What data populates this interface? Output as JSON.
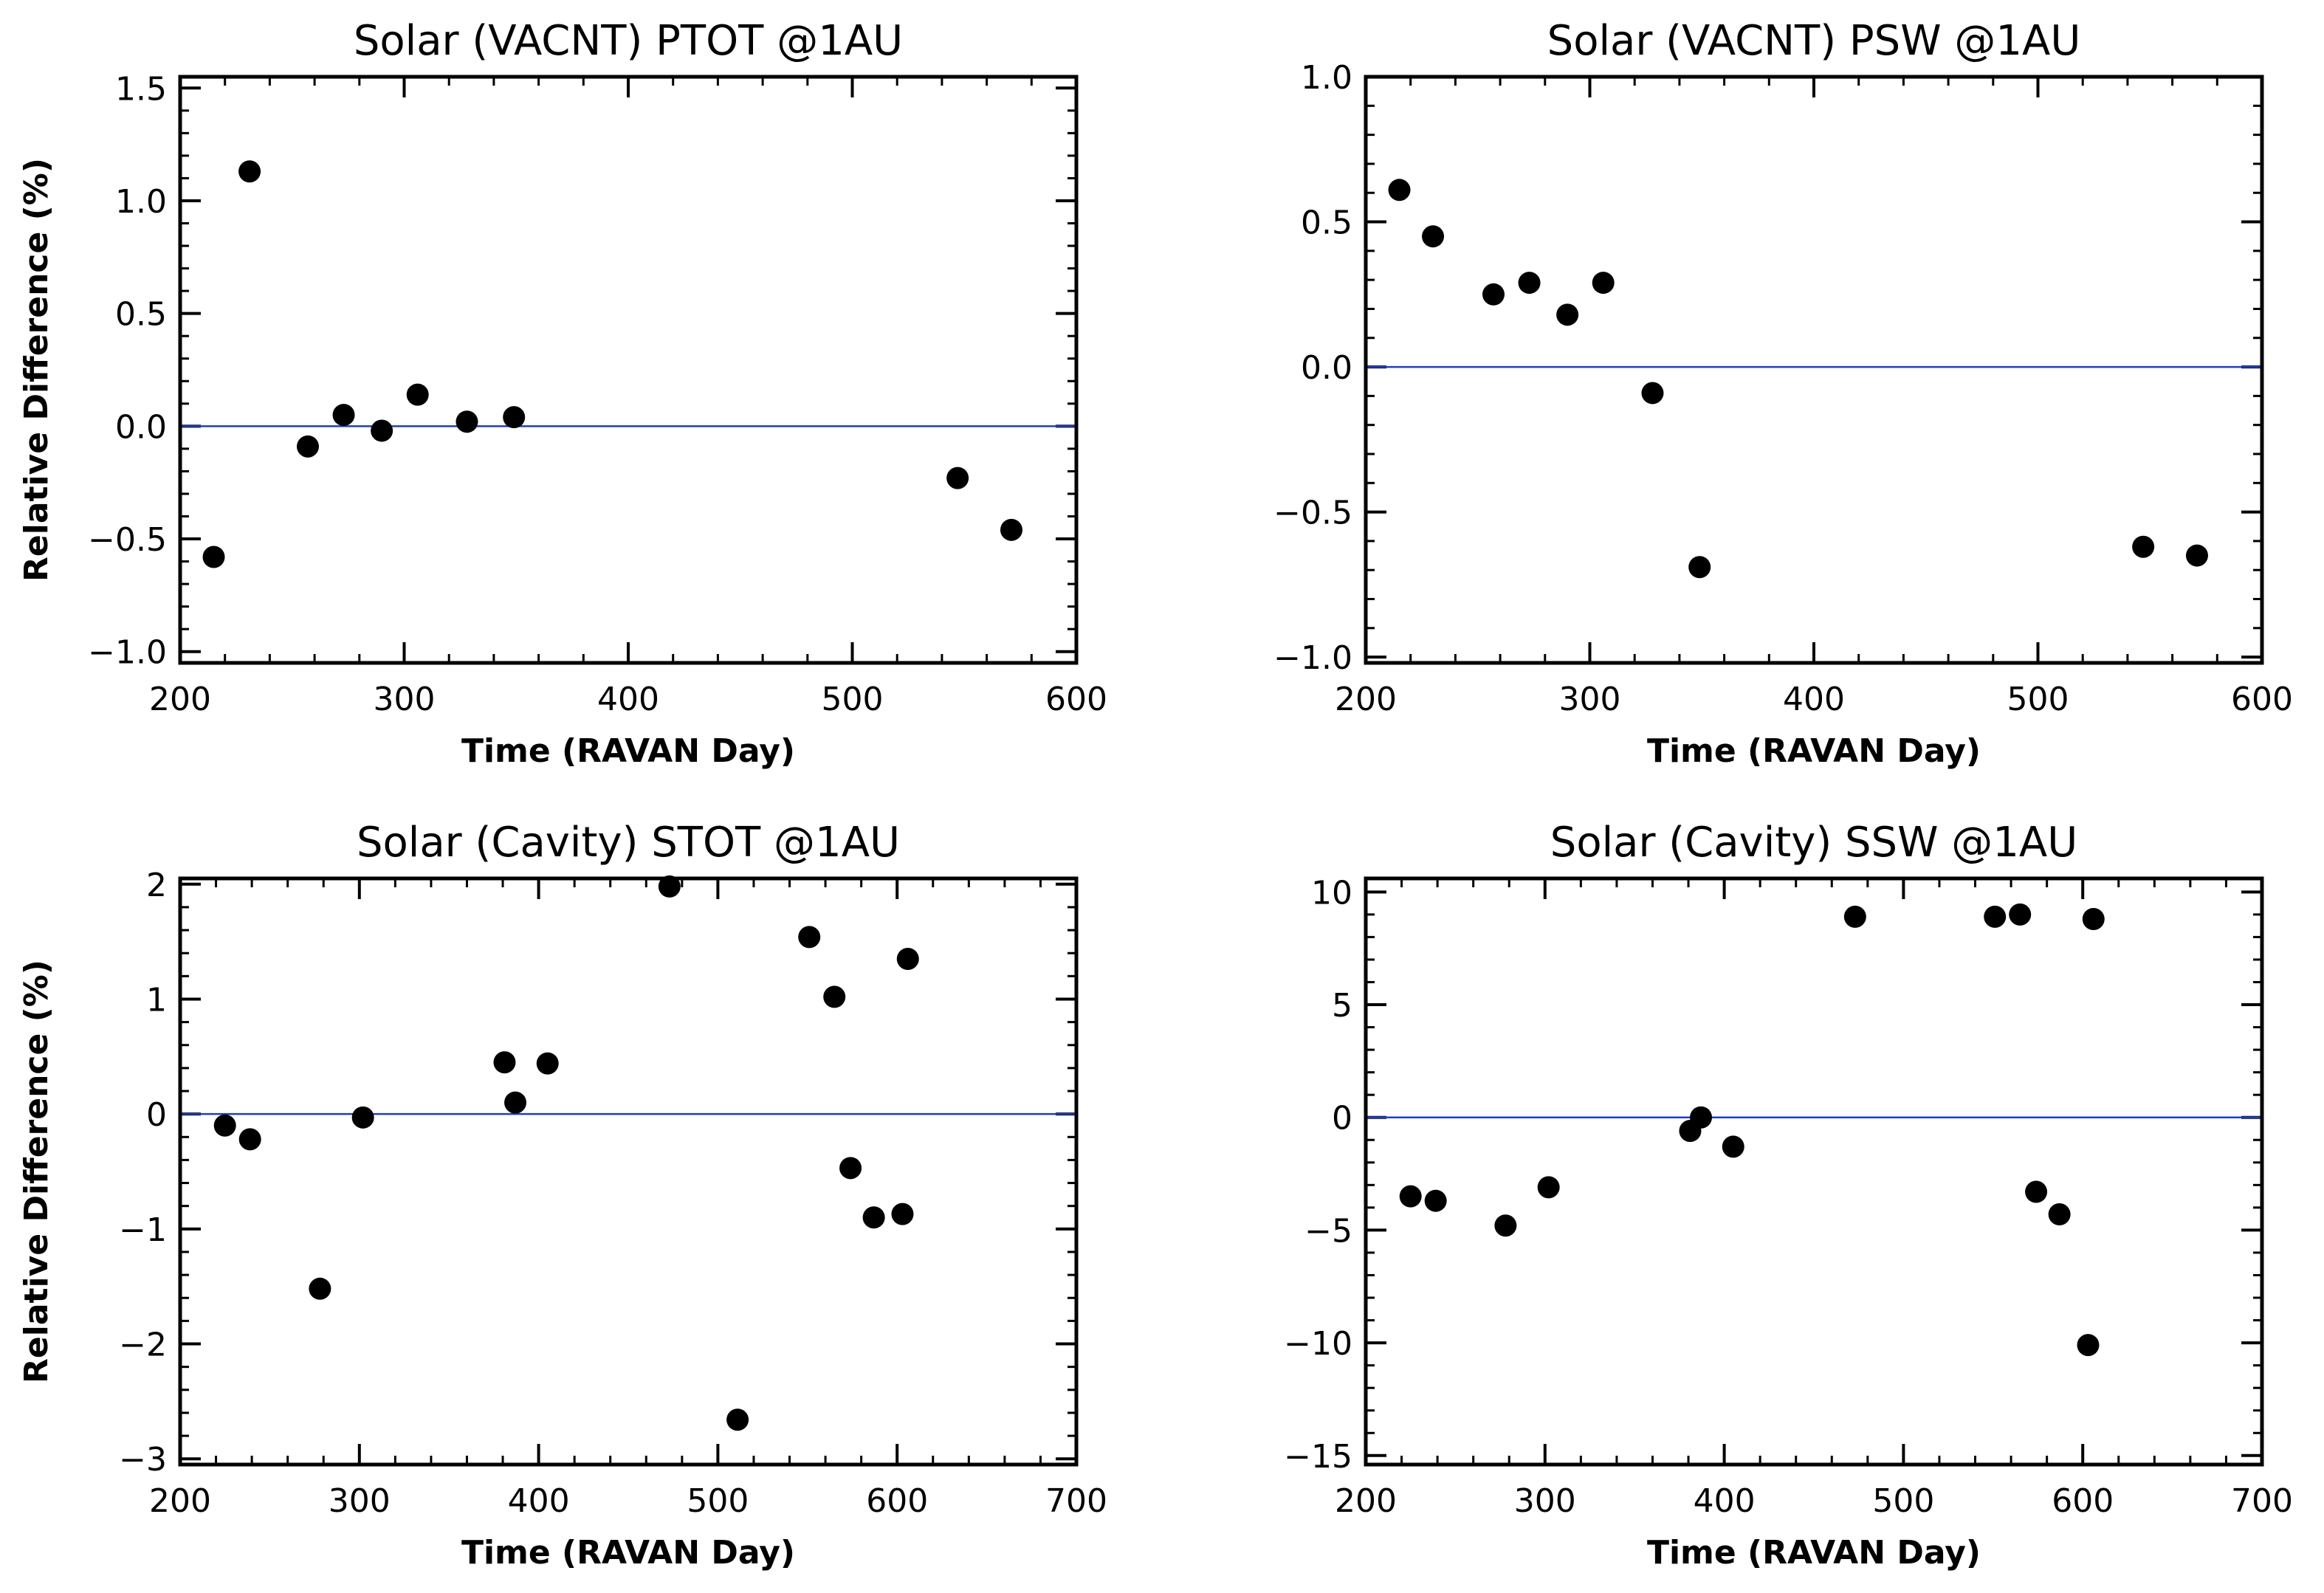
{
  "chart_data": [
    {
      "type": "scatter",
      "title": "Solar (VACNT) PTOT @1AU",
      "xlabel": "Time (RAVAN Day)",
      "ylabel": "Relative Difference (%)",
      "xlim": [
        200,
        600
      ],
      "ylim": [
        -1.05,
        1.55
      ],
      "xticks": [
        200,
        300,
        400,
        500,
        600
      ],
      "xtick_labels": [
        "200",
        "300",
        "400",
        "500",
        "600"
      ],
      "yticks": [
        -1.0,
        -0.5,
        0.0,
        0.5,
        1.0,
        1.5
      ],
      "ytick_labels": [
        "−1.0",
        "−0.5",
        "0.0",
        "0.5",
        "1.0",
        "1.5"
      ],
      "reference_line": 0,
      "x": [
        215,
        231,
        257,
        273,
        290,
        306,
        328,
        349,
        547,
        571
      ],
      "y": [
        -0.58,
        1.13,
        -0.09,
        0.05,
        -0.02,
        0.14,
        0.02,
        0.04,
        -0.23,
        -0.46
      ]
    },
    {
      "type": "scatter",
      "title": "Solar (VACNT) PSW @1AU",
      "xlabel": "Time (RAVAN Day)",
      "ylabel": "",
      "xlim": [
        200,
        600
      ],
      "ylim": [
        -1.02,
        1.0
      ],
      "xticks": [
        200,
        300,
        400,
        500,
        600
      ],
      "xtick_labels": [
        "200",
        "300",
        "400",
        "500",
        "600"
      ],
      "yticks": [
        -1.0,
        -0.5,
        0.0,
        0.5,
        1.0
      ],
      "ytick_labels": [
        "−1.0",
        "−0.5",
        "0.0",
        "0.5",
        "1.0"
      ],
      "reference_line": 0,
      "x": [
        215,
        230,
        257,
        273,
        290,
        306,
        328,
        349,
        547,
        571
      ],
      "y": [
        0.61,
        0.45,
        0.25,
        0.29,
        0.18,
        0.29,
        -0.09,
        -0.69,
        -0.62,
        -0.65
      ]
    },
    {
      "type": "scatter",
      "title": "Solar (Cavity) STOT @1AU",
      "xlabel": "Time (RAVAN Day)",
      "ylabel": "Relative Difference (%)",
      "xlim": [
        200,
        700
      ],
      "ylim": [
        -3.05,
        2.05
      ],
      "xticks": [
        200,
        300,
        400,
        500,
        600,
        700
      ],
      "xtick_labels": [
        "200",
        "300",
        "400",
        "500",
        "600",
        "700"
      ],
      "yticks": [
        -3,
        -2,
        -1,
        0,
        1,
        2
      ],
      "ytick_labels": [
        "−3",
        "−2",
        "−1",
        "0",
        "1",
        "2"
      ],
      "reference_line": 0,
      "x": [
        225,
        239,
        278,
        302,
        381,
        387,
        405,
        473,
        511,
        551,
        565,
        574,
        587,
        603,
        606
      ],
      "y": [
        -0.1,
        -0.22,
        -1.52,
        -0.03,
        0.45,
        0.1,
        0.44,
        1.98,
        -2.66,
        1.54,
        1.02,
        -0.47,
        -0.9,
        -0.87,
        1.35
      ]
    },
    {
      "type": "scatter",
      "title": "Solar (Cavity) SSW @1AU",
      "xlabel": "Time (RAVAN Day)",
      "ylabel": "",
      "xlim": [
        200,
        700
      ],
      "ylim": [
        -15.4,
        10.6
      ],
      "xticks": [
        200,
        300,
        400,
        500,
        600,
        700
      ],
      "xtick_labels": [
        "200",
        "300",
        "400",
        "500",
        "600",
        "700"
      ],
      "yticks": [
        -15,
        -10,
        -5,
        0,
        5,
        10
      ],
      "ytick_labels": [
        "−15",
        "−10",
        "−5",
        "0",
        "5",
        "10"
      ],
      "reference_line": 0,
      "x": [
        225,
        239,
        278,
        302,
        381,
        387,
        405,
        473,
        551,
        565,
        574,
        587,
        603,
        606
      ],
      "y": [
        -3.5,
        -3.7,
        -4.8,
        -3.1,
        -0.6,
        0.0,
        -1.3,
        8.9,
        8.9,
        9.0,
        -3.3,
        -4.3,
        -10.1,
        8.8
      ]
    }
  ]
}
